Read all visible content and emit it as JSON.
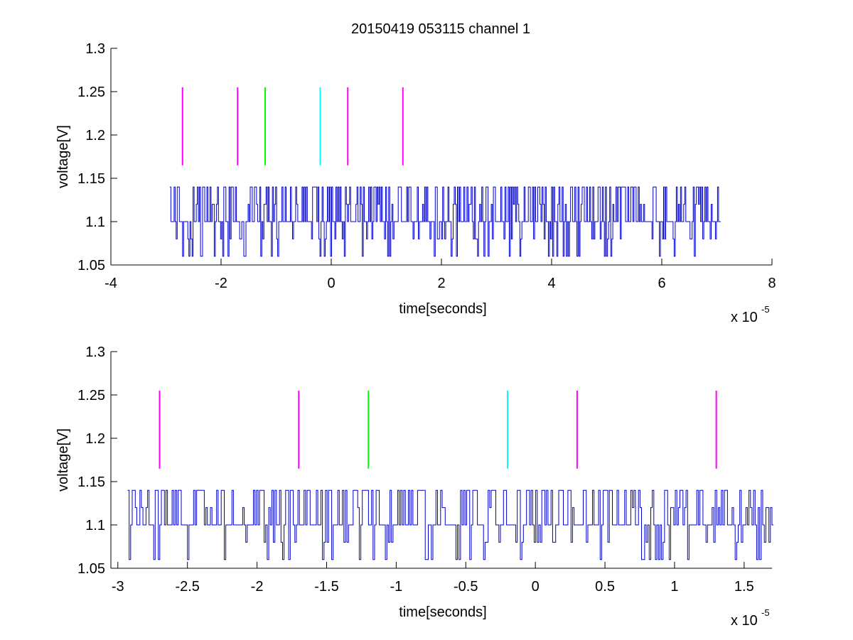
{
  "figure_title": "20150419 053115 channel 1",
  "colors": {
    "signal": "#0000cc",
    "marker_magenta": "#ff00ff",
    "marker_green": "#00ff00",
    "marker_cyan": "#00ffff",
    "axes": "#000000"
  },
  "chart_data": [
    {
      "type": "line",
      "title": "20150419 053115 channel 1",
      "xlabel": "time[seconds]",
      "ylabel": "voltage[V]",
      "x_multiplier_label": "x 10",
      "x_multiplier_exponent": "-5",
      "xlim": [
        -4,
        8
      ],
      "ylim": [
        1.05,
        1.3
      ],
      "x_ticks": [
        -4,
        -2,
        0,
        2,
        4,
        6,
        8
      ],
      "x_tick_labels": [
        "-4",
        "-2",
        "0",
        "2",
        "4",
        "6",
        "8"
      ],
      "y_ticks": [
        1.05,
        1.1,
        1.15,
        1.2,
        1.25,
        1.3
      ],
      "y_tick_labels": [
        "1.05",
        "1.1",
        "1.15",
        "1.2",
        "1.25",
        "1.3"
      ],
      "grid": false,
      "series": [
        {
          "kind": "signal",
          "x_range": [
            -2.93,
            7.05
          ],
          "baseline": 1.1,
          "levels": [
            1.06,
            1.08,
            1.1,
            1.12,
            1.14
          ],
          "seed": 7,
          "samples": 520
        }
      ],
      "markers": [
        {
          "x": -2.7,
          "y": [
            1.165,
            1.255
          ],
          "color": "magenta"
        },
        {
          "x": -1.7,
          "y": [
            1.165,
            1.255
          ],
          "color": "magenta"
        },
        {
          "x": -1.2,
          "y": [
            1.165,
            1.255
          ],
          "color": "green"
        },
        {
          "x": -0.2,
          "y": [
            1.165,
            1.255
          ],
          "color": "cyan"
        },
        {
          "x": 0.3,
          "y": [
            1.165,
            1.255
          ],
          "color": "magenta"
        },
        {
          "x": 1.3,
          "y": [
            1.165,
            1.255
          ],
          "color": "magenta"
        }
      ]
    },
    {
      "type": "line",
      "title": "",
      "xlabel": "time[seconds]",
      "ylabel": "voltage[V]",
      "x_multiplier_label": "x 10",
      "x_multiplier_exponent": "-5",
      "xlim": [
        -3.05,
        1.7
      ],
      "ylim": [
        1.05,
        1.3
      ],
      "x_ticks": [
        -3,
        -2.5,
        -2,
        -1.5,
        -1,
        -0.5,
        0,
        0.5,
        1,
        1.5
      ],
      "x_tick_labels": [
        "-3",
        "-2.5",
        "-2",
        "-1.5",
        "-1",
        "-0.5",
        "0",
        "0.5",
        "1",
        "1.5"
      ],
      "y_ticks": [
        1.05,
        1.1,
        1.15,
        1.2,
        1.25,
        1.3
      ],
      "y_tick_labels": [
        "1.05",
        "1.1",
        "1.15",
        "1.2",
        "1.25",
        "1.3"
      ],
      "grid": false,
      "series": [
        {
          "kind": "signal",
          "x_range": [
            -2.93,
            1.7
          ],
          "baseline": 1.1,
          "levels": [
            1.06,
            1.08,
            1.1,
            1.12,
            1.14
          ],
          "seed": 13,
          "samples": 420
        }
      ],
      "markers": [
        {
          "x": -2.7,
          "y": [
            1.165,
            1.255
          ],
          "color": "magenta"
        },
        {
          "x": -1.7,
          "y": [
            1.165,
            1.255
          ],
          "color": "magenta"
        },
        {
          "x": -1.2,
          "y": [
            1.165,
            1.255
          ],
          "color": "green"
        },
        {
          "x": -0.2,
          "y": [
            1.165,
            1.255
          ],
          "color": "cyan"
        },
        {
          "x": 0.3,
          "y": [
            1.165,
            1.255
          ],
          "color": "magenta"
        },
        {
          "x": 1.3,
          "y": [
            1.165,
            1.255
          ],
          "color": "magenta"
        }
      ]
    }
  ]
}
